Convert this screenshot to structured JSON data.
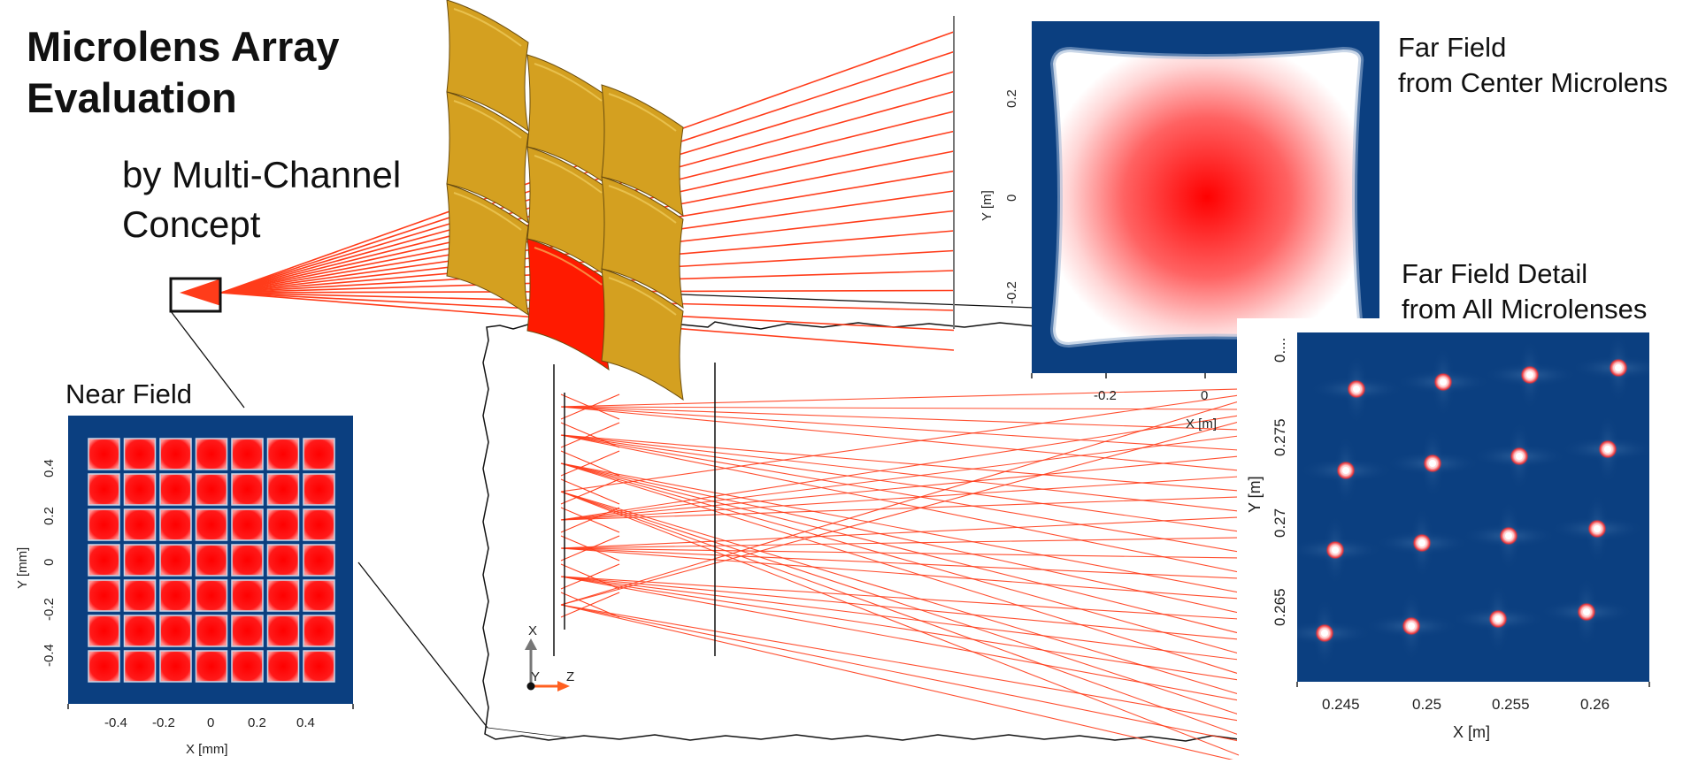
{
  "title_line1": "Microlens Array",
  "title_line2": "Evaluation",
  "subtitle_line1": "by Multi-Channel",
  "subtitle_line2": "Concept",
  "far_field_label_line1": "Far Field",
  "far_field_label_line2": "from Center Microlens",
  "far_field_detail_label_line1": "Far Field Detail",
  "far_field_detail_label_line2": "from All Microlenses",
  "near_field_label": "Near Field",
  "near_field_plot": {
    "x_label": "X [mm]",
    "y_label": "Y [mm]",
    "x_ticks": [
      "-0.4",
      "-0.2",
      "0",
      "0.2",
      "0.4"
    ],
    "y_ticks": [
      "0.4",
      "0.2",
      "0",
      "-0.2",
      "-0.4"
    ],
    "grid": "7x7 square cells",
    "colors": {
      "background": "#0b3f80",
      "cell": "#ff1414"
    }
  },
  "far_field_plot": {
    "x_label": "X [m]",
    "y_label": "Y [m]",
    "x_ticks": [
      "-0.2",
      "0"
    ],
    "y_ticks": [
      "0.2",
      "0",
      "-0.2"
    ],
    "colors": {
      "background": "#0b3f80",
      "center": "#ff0000"
    }
  },
  "detail_plot": {
    "x_label": "X [m]",
    "y_label": "Y [m]",
    "x_ticks": [
      "0.245",
      "0.25",
      "0.255",
      "0.26"
    ],
    "y_ticks": [
      "0....",
      "0.275",
      "0.27",
      "0.265"
    ],
    "spots": "4x4 array of focal spots"
  },
  "system_view": {
    "axis_x": "X",
    "axis_y": "Y",
    "axis_z": "Z",
    "colors": {
      "rays": "#ff3c1a",
      "lens": "#d4a020",
      "highlight_lens": "#ff1a00"
    }
  }
}
